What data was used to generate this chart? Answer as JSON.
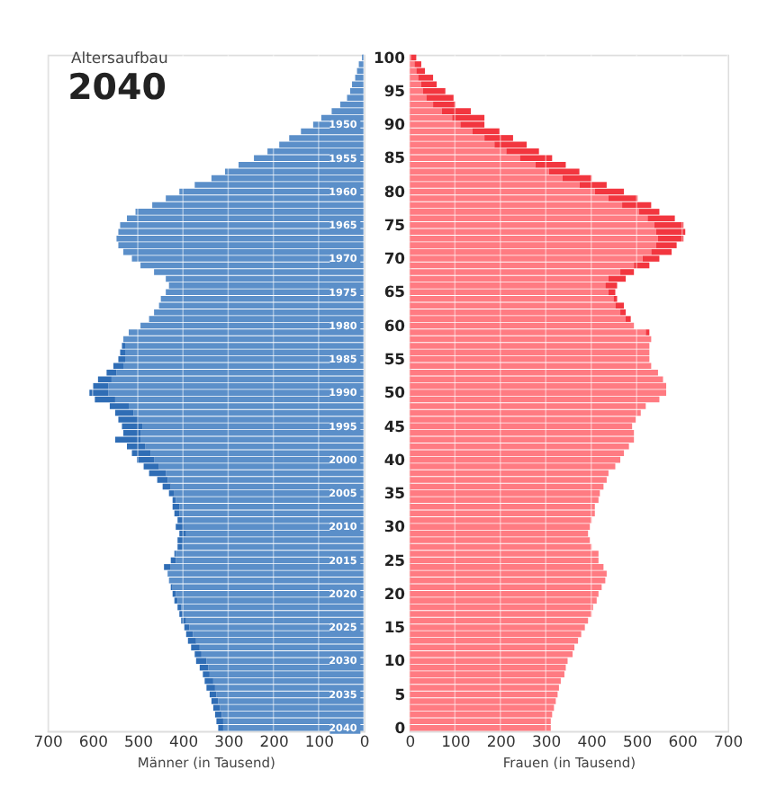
{
  "chart_data": [
    {
      "type": "bar",
      "orientation": "horizontal",
      "stacked": true,
      "title": "2040",
      "subtitle": "Altersaufbau",
      "xlabel": "Männer (in Tausend)",
      "categories": [
        "100",
        null,
        null,
        null,
        null,
        "95",
        null,
        null,
        null,
        null,
        "90",
        null,
        null,
        null,
        null,
        "85",
        null,
        null,
        null,
        null,
        "80",
        null,
        null,
        null,
        null,
        "75",
        null,
        null,
        null,
        null,
        "70",
        null,
        null,
        null,
        null,
        "65",
        null,
        null,
        null,
        null,
        "60",
        null,
        null,
        null,
        null,
        "55",
        null,
        null,
        null,
        null,
        "50",
        null,
        null,
        null,
        null,
        "45",
        null,
        null,
        null,
        null,
        "40",
        null,
        null,
        null,
        null,
        "35",
        null,
        null,
        null,
        null,
        "30",
        null,
        null,
        null,
        null,
        "25",
        null,
        null,
        null,
        null,
        "20",
        null,
        null,
        null,
        null,
        "15",
        null,
        null,
        null,
        null,
        "10",
        null,
        null,
        null,
        null,
        "5",
        null,
        null,
        null,
        null,
        "0"
      ],
      "series": [
        {
          "color": "#5b8fc9",
          "values": [
            4,
            11,
            15,
            19,
            26,
            30,
            37,
            52,
            71,
            94,
            112,
            139,
            165,
            187,
            213,
            243,
            277,
            307,
            337,
            374,
            408,
            438,
            468,
            505,
            524,
            539,
            543,
            547,
            543,
            532,
            513,
            494,
            464,
            438,
            431,
            438,
            449,
            453,
            464,
            475,
            494,
            520,
            532,
            528,
            528,
            528,
            532,
            547,
            558,
            565,
            565,
            550,
            520,
            509,
            498,
            490,
            494,
            494,
            483,
            472,
            464,
            453,
            438,
            434,
            427,
            419,
            416,
            408,
            408,
            401,
            397,
            393,
            397,
            401,
            416,
            416,
            427,
            434,
            431,
            423,
            416,
            412,
            404,
            401,
            393,
            386,
            378,
            371,
            363,
            359,
            348,
            344,
            341,
            333,
            329,
            326,
            322,
            318,
            314,
            311,
            311
          ]
        },
        {
          "color": "#2f6db5",
          "values": [
            0,
            0,
            0,
            0,
            0,
            0,
            0,
            0,
            0,
            0,
            0,
            0,
            0,
            0,
            0,
            0,
            0,
            0,
            0,
            0,
            0,
            0,
            0,
            0,
            0,
            0,
            0,
            0,
            0,
            0,
            0,
            0,
            0,
            0,
            0,
            0,
            0,
            0,
            0,
            0,
            0,
            0,
            0,
            7,
            11,
            15,
            22,
            22,
            30,
            34,
            42,
            45,
            42,
            41,
            45,
            45,
            38,
            56,
            41,
            41,
            38,
            34,
            37,
            23,
            18,
            12,
            7,
            15,
            11,
            11,
            19,
            15,
            15,
            11,
            3,
            11,
            15,
            0,
            0,
            4,
            7,
            7,
            8,
            7,
            11,
            11,
            15,
            18,
            19,
            15,
            23,
            19,
            15,
            19,
            19,
            15,
            15,
            15,
            15,
            15,
            11
          ]
        }
      ],
      "xlim": [
        700,
        0
      ],
      "xticks": [
        700,
        600,
        500,
        400,
        300,
        200,
        100,
        0
      ],
      "grid": "x",
      "tick_labels": "x",
      "annotations": [
        {
          "text": "1950",
          "y": "90"
        },
        {
          "text": "1955",
          "y": "85"
        },
        {
          "text": "1960",
          "y": "80"
        },
        {
          "text": "1965",
          "y": "75"
        },
        {
          "text": "1970",
          "y": "70"
        },
        {
          "text": "1975",
          "y": "65"
        },
        {
          "text": "1980",
          "y": "60"
        },
        {
          "text": "1985",
          "y": "55"
        },
        {
          "text": "1990",
          "y": "50"
        },
        {
          "text": "1995",
          "y": "45"
        },
        {
          "text": "2000",
          "y": "40"
        },
        {
          "text": "2005",
          "y": "35"
        },
        {
          "text": "2010",
          "y": "30"
        },
        {
          "text": "2015",
          "y": "25"
        },
        {
          "text": "2020",
          "y": "20"
        },
        {
          "text": "2025",
          "y": "15"
        },
        {
          "text": "2030",
          "y": "10"
        },
        {
          "text": "2035",
          "y": "5"
        },
        {
          "text": "2040",
          "y": "0"
        }
      ]
    },
    {
      "type": "bar",
      "orientation": "horizontal",
      "stacked": true,
      "xlabel": "Frauen (in Tausend)",
      "categories": [
        "100",
        null,
        null,
        null,
        null,
        "95",
        null,
        null,
        null,
        null,
        "90",
        null,
        null,
        null,
        null,
        "85",
        null,
        null,
        null,
        null,
        "80",
        null,
        null,
        null,
        null,
        "75",
        null,
        null,
        null,
        null,
        "70",
        null,
        null,
        null,
        null,
        "65",
        null,
        null,
        null,
        null,
        "60",
        null,
        null,
        null,
        null,
        "55",
        null,
        null,
        null,
        null,
        "50",
        null,
        null,
        null,
        null,
        "45",
        null,
        null,
        null,
        null,
        "40",
        null,
        null,
        null,
        null,
        "35",
        null,
        null,
        null,
        null,
        "30",
        null,
        null,
        null,
        null,
        "25",
        null,
        null,
        null,
        null,
        "20",
        null,
        null,
        null,
        null,
        "15",
        null,
        null,
        null,
        null,
        "10",
        null,
        null,
        null,
        null,
        "5",
        null,
        null,
        null,
        null,
        "0"
      ],
      "series": [
        {
          "color": "#ff7b82",
          "values": [
            4,
            11,
            15,
            19,
            26,
            30,
            37,
            52,
            71,
            94,
            112,
            139,
            165,
            187,
            213,
            243,
            277,
            307,
            337,
            374,
            408,
            438,
            468,
            505,
            524,
            539,
            543,
            547,
            543,
            532,
            513,
            494,
            464,
            438,
            431,
            438,
            449,
            453,
            464,
            475,
            494,
            520,
            532,
            528,
            528,
            528,
            532,
            547,
            558,
            565,
            565,
            550,
            520,
            509,
            498,
            490,
            494,
            494,
            483,
            472,
            464,
            453,
            438,
            434,
            427,
            419,
            416,
            408,
            408,
            401,
            397,
            393,
            397,
            401,
            416,
            416,
            427,
            434,
            431,
            423,
            416,
            412,
            404,
            401,
            393,
            386,
            378,
            371,
            363,
            359,
            348,
            344,
            341,
            333,
            329,
            326,
            322,
            318,
            314,
            311,
            311
          ]
        },
        {
          "color": "#f2363f",
          "values": [
            11,
            15,
            19,
            33,
            34,
            49,
            60,
            49,
            64,
            71,
            53,
            59,
            63,
            71,
            72,
            71,
            67,
            67,
            64,
            60,
            64,
            64,
            64,
            45,
            60,
            64,
            64,
            56,
            45,
            45,
            37,
            34,
            30,
            38,
            26,
            15,
            8,
            19,
            12,
            12,
            0,
            8,
            0,
            0,
            0,
            0,
            0,
            0,
            0,
            0,
            0,
            0,
            0,
            0,
            0,
            0,
            0,
            0,
            0,
            0,
            0,
            0,
            0,
            0,
            0,
            0,
            0,
            0,
            0,
            0,
            0,
            0,
            0,
            0,
            0,
            0,
            0,
            0,
            0,
            0,
            0,
            0,
            0,
            0,
            0,
            0,
            0,
            0,
            0,
            0,
            0,
            0,
            0,
            0,
            0,
            0,
            0,
            0,
            0,
            0,
            0
          ]
        }
      ],
      "xlim": [
        0,
        700
      ],
      "xticks": [
        0,
        100,
        200,
        300,
        400,
        500,
        600,
        700
      ],
      "grid": "x"
    }
  ]
}
